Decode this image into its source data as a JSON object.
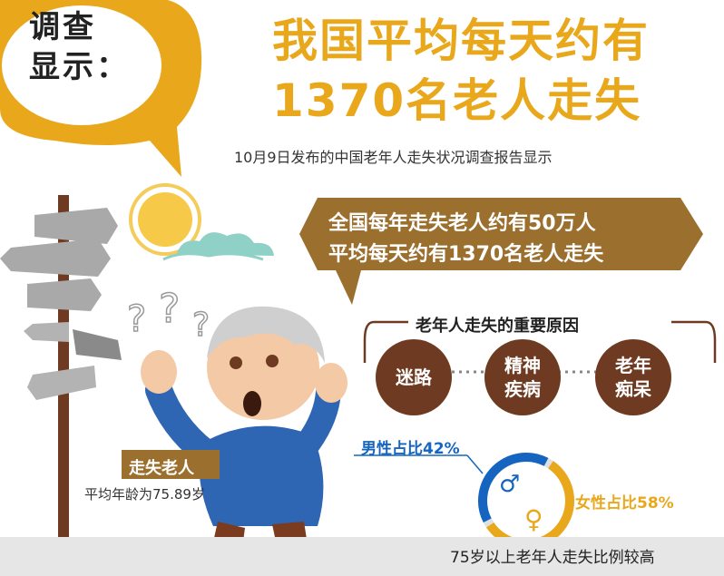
{
  "bubble": {
    "line1": "调查",
    "line2": "显示："
  },
  "title": {
    "line1": "我国平均每天约有",
    "line2": "1370名老人走失"
  },
  "subtitle": "10月9日发布的中国老年人走失状况调查报告显示",
  "banner": {
    "line1": "全国每年走失老人约有50万人",
    "line2": "平均每天约有1370名老人走失"
  },
  "reasons": {
    "title": "老年人走失的重要原因",
    "items": [
      {
        "line1": "迷路",
        "line2": ""
      },
      {
        "line1": "精神",
        "line2": "疾病"
      },
      {
        "line1": "老年",
        "line2": "痴呆"
      }
    ]
  },
  "gender": {
    "male_label": "男性占比42%",
    "female_label": "女性占比58%",
    "male_share": 42,
    "female_share": 58,
    "male_symbol": "♂",
    "female_symbol": "♀",
    "male_color": "#1565c0",
    "female_color": "#e9a81c"
  },
  "lost_elderly": {
    "title": "走失老人",
    "avg_age": "平均年龄为75.89岁"
  },
  "bottom_note": "75岁以上老年人走失比例较高",
  "colors": {
    "accent": "#e9a81c",
    "brown": "#9b6f2e",
    "dark_brown": "#6e3b22",
    "blue": "#1565c0"
  }
}
